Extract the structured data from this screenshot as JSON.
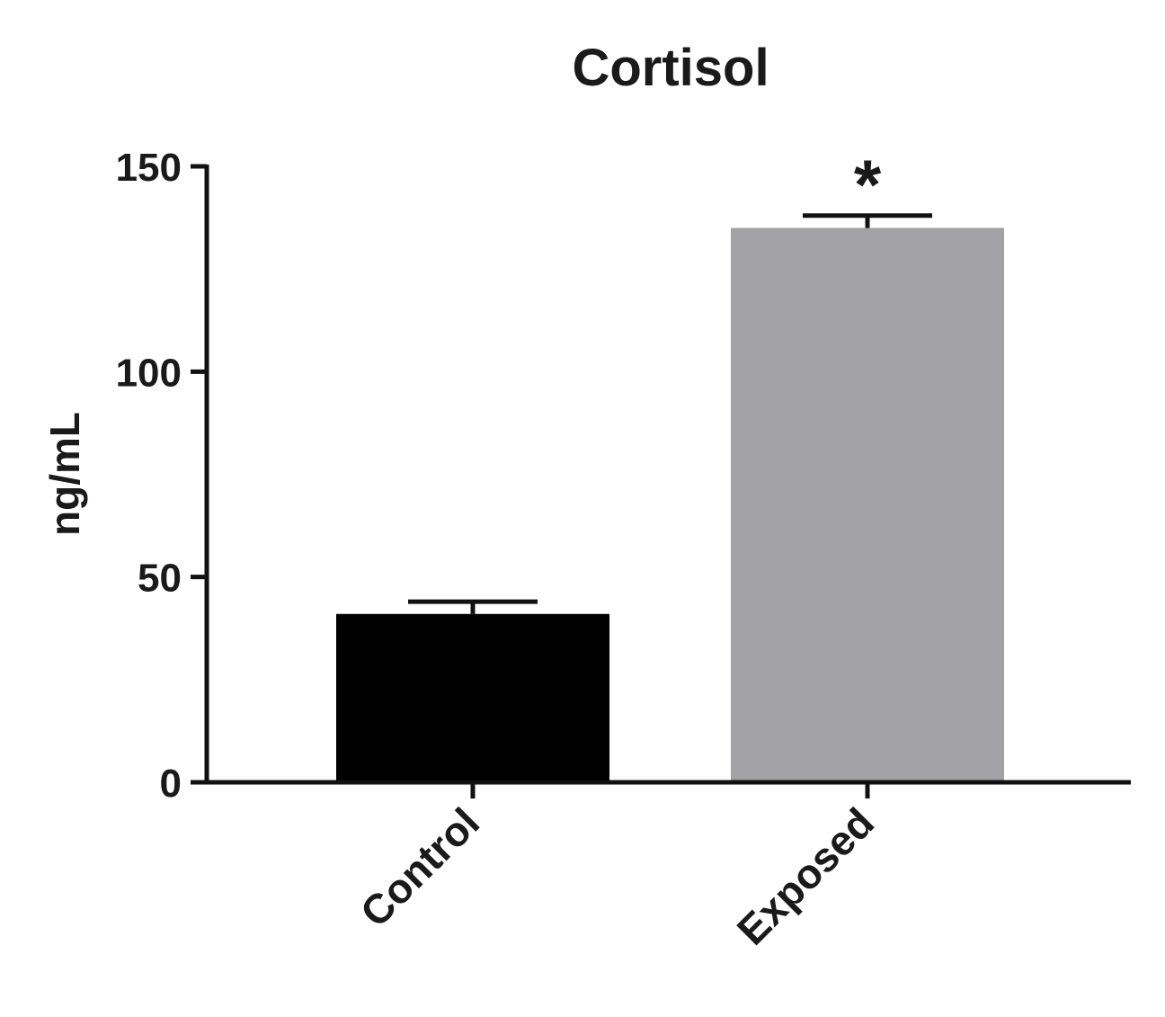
{
  "chart_data": {
    "type": "bar",
    "title": "Cortisol",
    "ylabel": "ng/mL",
    "xlabel": "",
    "categories": [
      "Control",
      "Exposed"
    ],
    "values": [
      41,
      135
    ],
    "errors": [
      3,
      3
    ],
    "annotations": [
      "",
      "*"
    ],
    "colors": [
      "#000000",
      "#a2a1a5"
    ],
    "ylim": [
      0,
      150
    ],
    "yticks": [
      0,
      50,
      100,
      150
    ],
    "ytick_labels": [
      "0",
      "50",
      "100",
      "150"
    ],
    "grid": false,
    "legend": "none"
  }
}
